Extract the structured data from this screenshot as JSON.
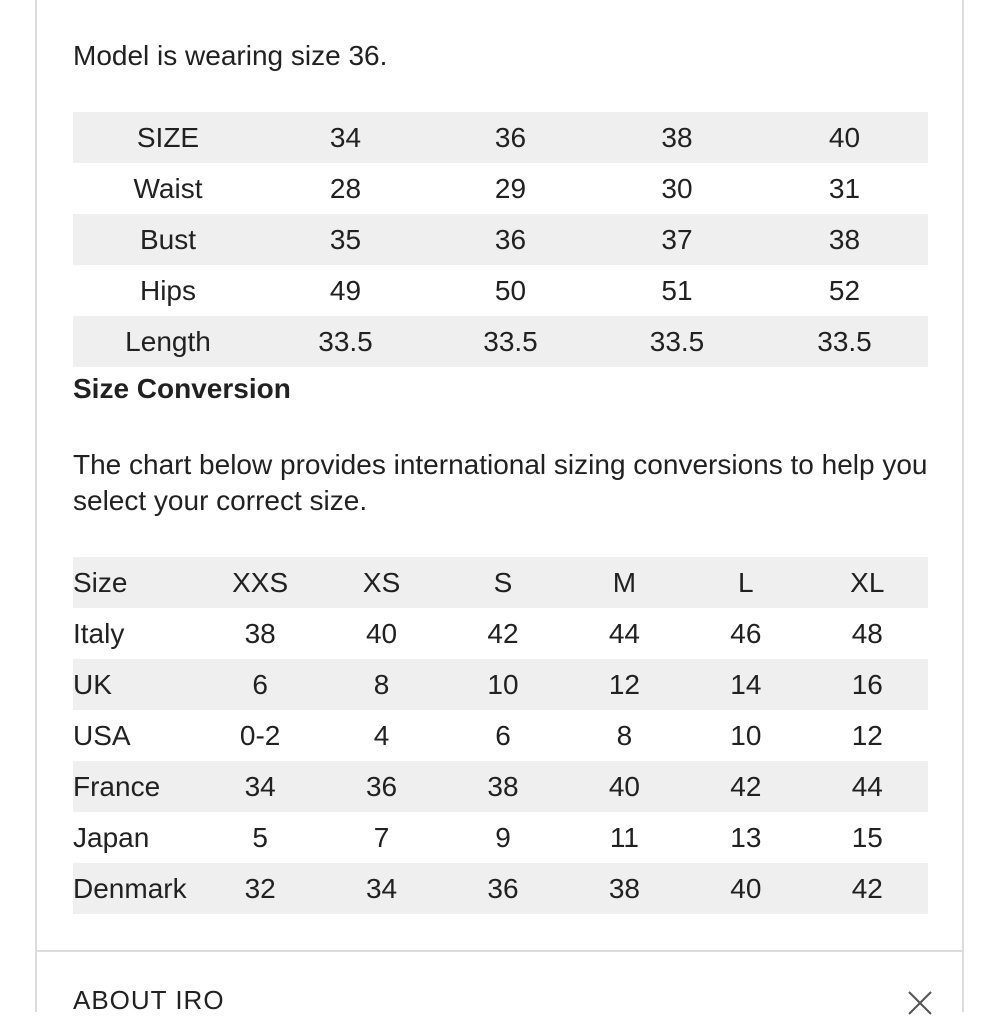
{
  "intro": "Model is wearing size 36.",
  "size_table": {
    "rows": [
      [
        "SIZE",
        "34",
        "36",
        "38",
        "40"
      ],
      [
        "Waist",
        "28",
        "29",
        "30",
        "31"
      ],
      [
        "Bust",
        "35",
        "36",
        "37",
        "38"
      ],
      [
        "Hips",
        "49",
        "50",
        "51",
        "52"
      ],
      [
        "Length",
        "33.5",
        "33.5",
        "33.5",
        "33.5"
      ]
    ]
  },
  "conversion": {
    "heading": "Size Conversion",
    "description": "The chart below provides international sizing conversions to help you select your correct size.",
    "rows": [
      [
        "Size",
        "XXS",
        "XS",
        "S",
        "M",
        "L",
        "XL"
      ],
      [
        "Italy",
        "38",
        "40",
        "42",
        "44",
        "46",
        "48"
      ],
      [
        "UK",
        "6",
        "8",
        "10",
        "12",
        "14",
        "16"
      ],
      [
        "USA",
        "0-2",
        "4",
        "6",
        "8",
        "10",
        "12"
      ],
      [
        "France",
        "34",
        "36",
        "38",
        "40",
        "42",
        "44"
      ],
      [
        "Japan",
        "5",
        "7",
        "9",
        "11",
        "13",
        "15"
      ],
      [
        "Denmark",
        "32",
        "34",
        "36",
        "38",
        "40",
        "42"
      ]
    ]
  },
  "about": {
    "label": "ABOUT IRO",
    "toggle_icon": "close-icon"
  }
}
